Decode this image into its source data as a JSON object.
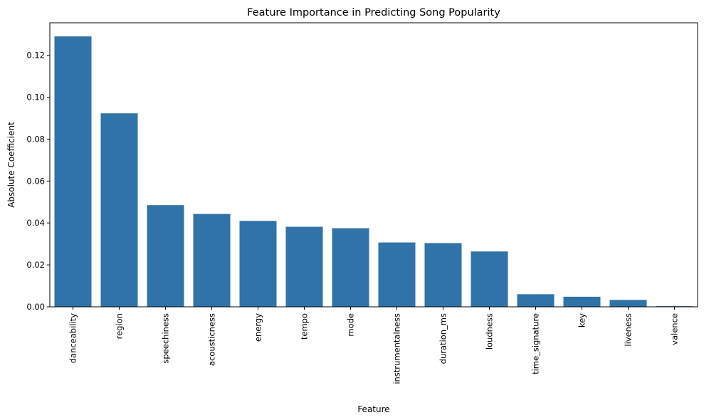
{
  "chart_data": {
    "type": "bar",
    "title": "Feature Importance in Predicting Song Popularity",
    "xlabel": "Feature",
    "ylabel": "Absolute Coefficient",
    "categories": [
      "danceability",
      "region",
      "speechiness",
      "acousticness",
      "energy",
      "tempo",
      "mode",
      "instrumentalness",
      "duration_ms",
      "loudness",
      "time_signature",
      "key",
      "liveness",
      "valence"
    ],
    "values": [
      0.129,
      0.0923,
      0.0485,
      0.0443,
      0.041,
      0.0382,
      0.0375,
      0.0307,
      0.0304,
      0.0264,
      0.006,
      0.0048,
      0.0033,
      0.0003
    ],
    "yticks": [
      "0.00",
      "0.02",
      "0.04",
      "0.06",
      "0.08",
      "0.10",
      "0.12"
    ],
    "ylim": [
      0,
      0.1355
    ],
    "bar_color": "#2f73a9",
    "grid": false,
    "legend": false
  }
}
